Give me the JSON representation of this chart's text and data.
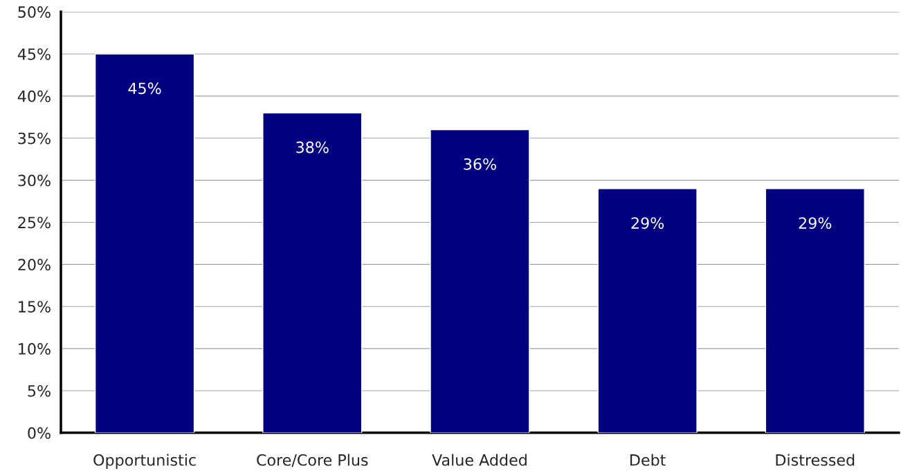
{
  "chart_data": {
    "type": "bar",
    "categories": [
      "Opportunistic",
      "Core/Core Plus",
      "Value Added",
      "Debt",
      "Distressed"
    ],
    "values": [
      45,
      38,
      36,
      29,
      29
    ],
    "value_labels": [
      "45%",
      "38%",
      "36%",
      "29%",
      "29%"
    ],
    "color": "#000080",
    "ylim": [
      0,
      50
    ],
    "yticks": [
      {
        "value": 0,
        "label": "0%"
      },
      {
        "value": 5,
        "label": "5%"
      },
      {
        "value": 10,
        "label": "10%"
      },
      {
        "value": 15,
        "label": "15%"
      },
      {
        "value": 20,
        "label": "20%"
      },
      {
        "value": 25,
        "label": "25%"
      },
      {
        "value": 30,
        "label": "30%"
      },
      {
        "value": 35,
        "label": "35%"
      },
      {
        "value": 40,
        "label": "40%"
      },
      {
        "value": 45,
        "label": "45%"
      },
      {
        "value": 50,
        "label": "50%"
      }
    ],
    "grid": "y",
    "legend": false
  }
}
